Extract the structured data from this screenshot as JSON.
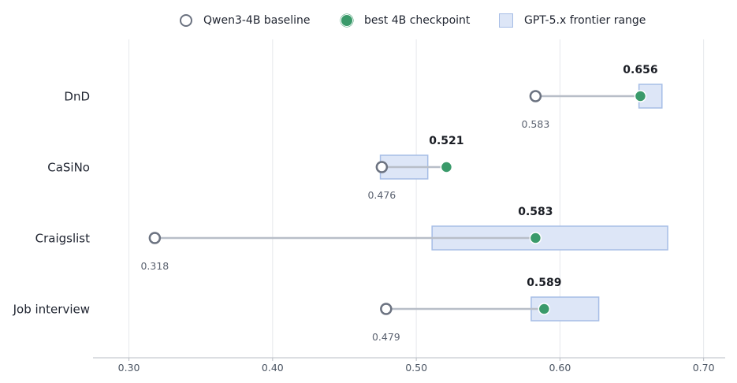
{
  "chart_data": {
    "type": "dumbbell",
    "xlim": [
      0.275,
      0.715
    ],
    "xticks": [
      "0.30",
      "0.40",
      "0.50",
      "0.60",
      "0.70"
    ],
    "xtick_values": [
      0.3,
      0.4,
      0.5,
      0.6,
      0.7
    ],
    "grid": "vertical",
    "legend": {
      "placement": "top",
      "baseline": "Qwen3-4B baseline",
      "best": "best 4B checkpoint",
      "range": "GPT-5.x frontier range"
    },
    "colors": {
      "baseline_stroke": "#6b7280",
      "best_fill": "#3a9a6a",
      "range_fill": "#dde6f7",
      "range_stroke": "#a6bde6",
      "connector": "#b8bec8"
    },
    "categories": [
      "DnD",
      "CaSiNo",
      "Craigslist",
      "Job interview"
    ],
    "rows": [
      {
        "category": "DnD",
        "baseline": 0.583,
        "best": 0.656,
        "range": [
          0.655,
          0.671
        ],
        "baseline_label": "0.583",
        "best_label": "0.656"
      },
      {
        "category": "CaSiNo",
        "baseline": 0.476,
        "best": 0.521,
        "range": [
          0.475,
          0.508
        ],
        "baseline_label": "0.476",
        "best_label": "0.521"
      },
      {
        "category": "Craigslist",
        "baseline": 0.318,
        "best": 0.583,
        "range": [
          0.511,
          0.675
        ],
        "baseline_label": "0.318",
        "best_label": "0.583"
      },
      {
        "category": "Job interview",
        "baseline": 0.479,
        "best": 0.589,
        "range": [
          0.58,
          0.627
        ],
        "baseline_label": "0.479",
        "best_label": "0.589"
      }
    ]
  }
}
